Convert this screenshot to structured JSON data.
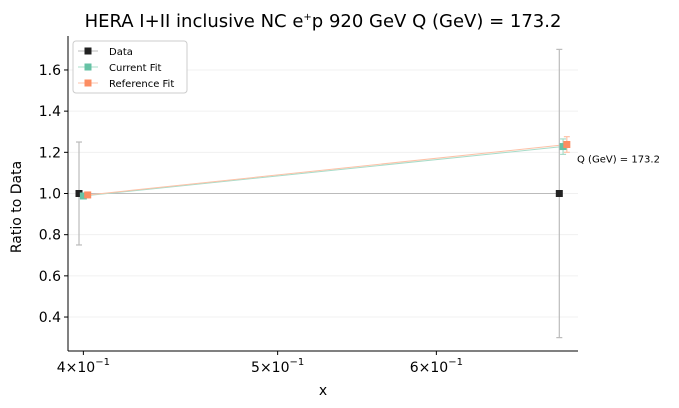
{
  "chart_data": {
    "type": "line",
    "title": "HERA I+II inclusive NC e$^+$p 920 GeV Q (GeV) = 173.2",
    "title_parts": {
      "pre": "HERA I+II inclusive NC e",
      "sup": "+",
      "post": "p 920 GeV Q (GeV) = 173.2"
    },
    "xlabel": "x",
    "ylabel": "Ratio to Data",
    "x_scale": "log",
    "xlim": [
      0.393,
      0.706
    ],
    "ylim": [
      0.235,
      1.765
    ],
    "x_ticks": [
      {
        "value": 0.4,
        "base": "4×10",
        "exp": "−1"
      },
      {
        "value": 0.5,
        "base": "5×10",
        "exp": "−1"
      },
      {
        "value": 0.6,
        "base": "6×10",
        "exp": "−1"
      }
    ],
    "y_ticks": [
      {
        "value": 0.4,
        "label": "0.4"
      },
      {
        "value": 0.6,
        "label": "0.6"
      },
      {
        "value": 0.8,
        "label": "0.8"
      },
      {
        "value": 1.0,
        "label": "1.0"
      },
      {
        "value": 1.2,
        "label": "1.2"
      },
      {
        "value": 1.4,
        "label": "1.4"
      },
      {
        "value": 1.6,
        "label": "1.6"
      }
    ],
    "grid": true,
    "legend": "top-left",
    "series": [
      {
        "name": "Data",
        "color": "#222222",
        "line_color": "#bbbbbb",
        "x": [
          0.398,
          0.691
        ],
        "y": [
          1.0,
          1.0
        ],
        "err_lo": [
          0.75,
          0.3
        ],
        "err_hi": [
          1.25,
          1.7
        ]
      },
      {
        "name": "Current Fit",
        "color": "#66c2a5",
        "line_color": "#a8dcc9",
        "x": [
          0.4,
          0.694
        ],
        "y": [
          0.988,
          1.228
        ],
        "err_lo": [
          0.978,
          1.19
        ],
        "err_hi": [
          0.998,
          1.265
        ]
      },
      {
        "name": "Reference Fit",
        "color": "#fc8d62",
        "line_color": "#fdc2a8",
        "x": [
          0.402,
          0.697
        ],
        "y": [
          0.993,
          1.238
        ],
        "err_lo": [
          0.983,
          1.2
        ],
        "err_hi": [
          1.003,
          1.276
        ]
      }
    ],
    "annotations": [
      {
        "text": "Q (GeV) = 173.2",
        "x": 0.697,
        "y": 1.17
      }
    ]
  }
}
